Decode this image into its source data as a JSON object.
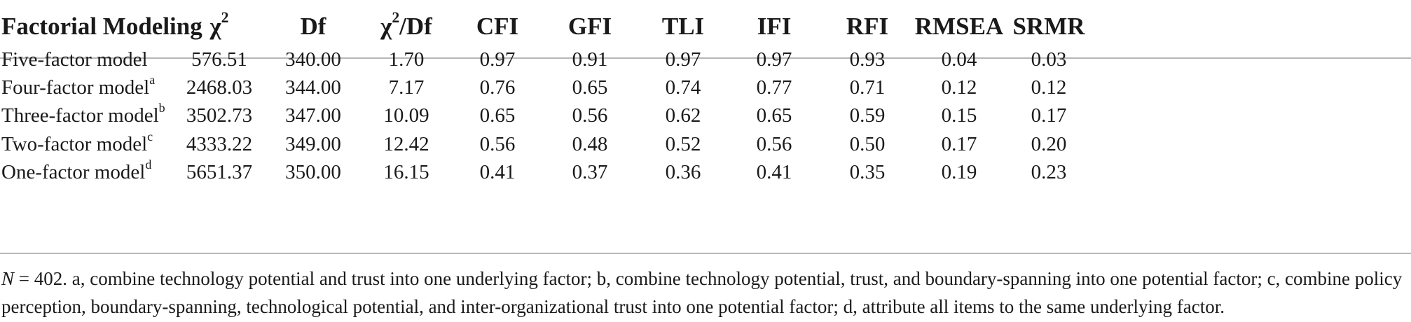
{
  "table": {
    "headers": {
      "model": "Factorial Modeling",
      "chi2_base": "χ",
      "chi2_sup": "2",
      "df": "Df",
      "chi2df_base": "χ",
      "chi2df_sup": "2",
      "chi2df_rest": "/Df",
      "cfi": "CFI",
      "gfi": "GFI",
      "tli": "TLI",
      "ifi": "IFI",
      "rfi": "RFI",
      "rmsea": "RMSEA",
      "srmr": "SRMR"
    },
    "rows": [
      {
        "model": "Five-factor model",
        "sup": "",
        "chi2": "576.51",
        "df": "340.00",
        "chi2df": "1.70",
        "cfi": "0.97",
        "gfi": "0.91",
        "tli": "0.97",
        "ifi": "0.97",
        "rfi": "0.93",
        "rmsea": "0.04",
        "srmr": "0.03"
      },
      {
        "model": "Four-factor model",
        "sup": "a",
        "chi2": "2468.03",
        "df": "344.00",
        "chi2df": "7.17",
        "cfi": "0.76",
        "gfi": "0.65",
        "tli": "0.74",
        "ifi": "0.77",
        "rfi": "0.71",
        "rmsea": "0.12",
        "srmr": "0.12"
      },
      {
        "model": "Three-factor model",
        "sup": "b",
        "chi2": "3502.73",
        "df": "347.00",
        "chi2df": "10.09",
        "cfi": "0.65",
        "gfi": "0.56",
        "tli": "0.62",
        "ifi": "0.65",
        "rfi": "0.59",
        "rmsea": "0.15",
        "srmr": "0.17"
      },
      {
        "model": "Two-factor model",
        "sup": "c",
        "chi2": "4333.22",
        "df": "349.00",
        "chi2df": "12.42",
        "cfi": "0.56",
        "gfi": "0.48",
        "tli": "0.52",
        "ifi": "0.56",
        "rfi": "0.50",
        "rmsea": "0.17",
        "srmr": "0.20"
      },
      {
        "model": "One-factor model",
        "sup": "d",
        "chi2": "5651.37",
        "df": "350.00",
        "chi2df": "16.15",
        "cfi": "0.41",
        "gfi": "0.37",
        "tli": "0.36",
        "ifi": "0.41",
        "rfi": "0.35",
        "rmsea": "0.19",
        "srmr": "0.23"
      }
    ]
  },
  "footnote": {
    "n_label": "N",
    "text": " = 402. a, combine technology potential and trust into one underlying factor; b, combine technology potential, trust, and boundary-spanning into one potential factor; c, combine policy perception, boundary-spanning, technological potential, and inter-organizational trust into one potential factor; d, attribute all items to the same underlying factor."
  }
}
